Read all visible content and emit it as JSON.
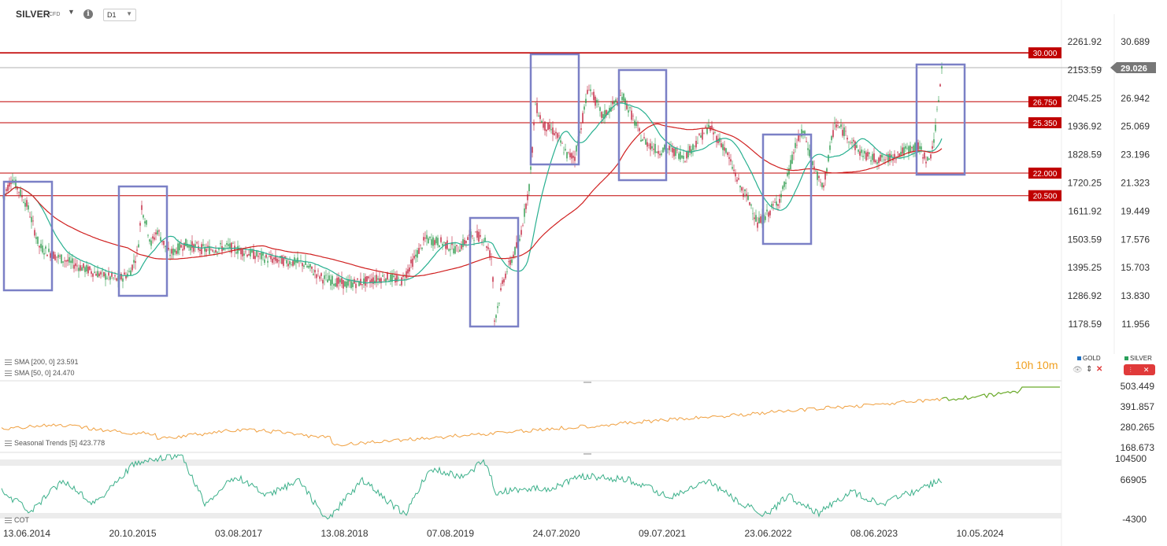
{
  "toolbar": {
    "symbol": "SILVER",
    "symbol_sub": "CFD",
    "timeframe": "D1",
    "caret_icon": "chevron-down-icon",
    "info_icon": "info-icon"
  },
  "main_chart": {
    "left_axis_ticks": [
      "2261.92",
      "2153.59",
      "2045.25",
      "1936.92",
      "1828.59",
      "1720.25",
      "1611.92",
      "1503.59",
      "1395.25",
      "1286.92",
      "1178.59"
    ],
    "right_axis_ticks": [
      "30.689",
      "26.942",
      "25.069",
      "23.196",
      "21.323",
      "19.449",
      "17.576",
      "15.703",
      "13.830",
      "11.956"
    ],
    "current_price": "29.026",
    "levels": [
      {
        "label": "30.000",
        "value": 30.0
      },
      {
        "label": "26.750",
        "value": 26.75
      },
      {
        "label": "25.350",
        "value": 25.35
      },
      {
        "label": "22.000",
        "value": 22.0
      },
      {
        "label": "20.500",
        "value": 20.5
      }
    ],
    "level_color": "#c00000",
    "box_color": "#7b80c6",
    "sma200_color": "#d02020",
    "sma50_color": "#28b090",
    "legend": {
      "sma200": "SMA [200, 0] 23.591",
      "sma50": "SMA [50, 0] 24.470"
    },
    "timer": "10h 10m",
    "compare": {
      "gold": "GOLD",
      "silver": "SILVER",
      "gold_color": "#1f6fc0",
      "silver_color": "#2aa05a"
    }
  },
  "seasonal_panel": {
    "label": "Seasonal Trends [5] 423.778",
    "ticks": [
      "503.449",
      "391.857",
      "280.265",
      "168.673"
    ],
    "color": "#f0a040",
    "proj_color": "#6aaa2a"
  },
  "cot_panel": {
    "label": "COT",
    "ticks": [
      "104500",
      "66905",
      "-4300"
    ],
    "color": "#3cb08a"
  },
  "x_axis": {
    "labels": [
      "13.06.2014",
      "20.10.2015",
      "03.08.2017",
      "13.08.2018",
      "07.08.2019",
      "24.07.2020",
      "09.07.2021",
      "23.06.2022",
      "08.06.2023",
      "10.05.2024"
    ]
  }
}
